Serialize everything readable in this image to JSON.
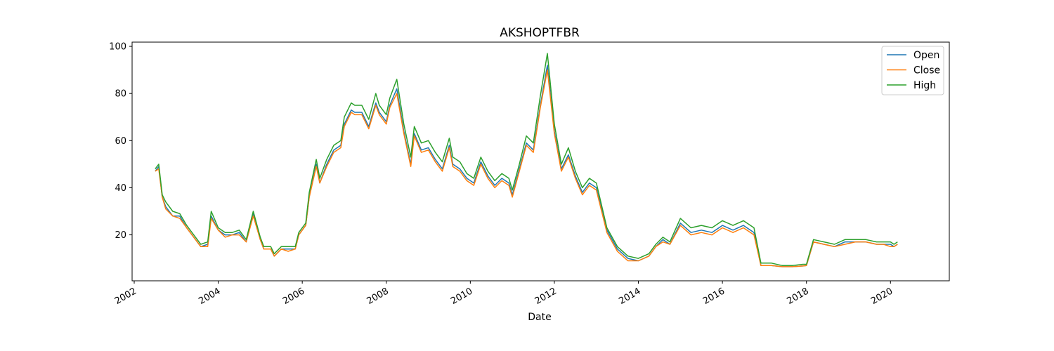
{
  "chart_data": {
    "type": "line",
    "title": "AKSHOPTFBR",
    "xlabel": "Date",
    "ylabel": "",
    "x_tick_labels": [
      "2002",
      "2004",
      "2006",
      "2008",
      "2010",
      "2012",
      "2014",
      "2016",
      "2018",
      "2020"
    ],
    "y_tick_labels": [
      "20",
      "40",
      "60",
      "80",
      "100"
    ],
    "xlim": [
      2001.95,
      2021.4
    ],
    "ylim": [
      0.5,
      101.8
    ],
    "legend_position": "top-right",
    "grid": false,
    "x": [
      "2002-07",
      "2002-08",
      "2002-09",
      "2002-10",
      "2002-12",
      "2003-02",
      "2003-04",
      "2003-06",
      "2003-08",
      "2003-10",
      "2003-11",
      "2004-01",
      "2004-03",
      "2004-05",
      "2004-07",
      "2004-09",
      "2004-11",
      "2005-01",
      "2005-02",
      "2005-04",
      "2005-05",
      "2005-07",
      "2005-09",
      "2005-11",
      "2005-12",
      "2006-02",
      "2006-03",
      "2006-05",
      "2006-06",
      "2006-08",
      "2006-10",
      "2006-12",
      "2007-01",
      "2007-03",
      "2007-04",
      "2007-06",
      "2007-08",
      "2007-10",
      "2007-11",
      "2008-01",
      "2008-02",
      "2008-04",
      "2008-06",
      "2008-08",
      "2008-09",
      "2008-11",
      "2009-01",
      "2009-03",
      "2009-05",
      "2009-07",
      "2009-08",
      "2009-10",
      "2009-12",
      "2010-02",
      "2010-04",
      "2010-06",
      "2010-08",
      "2010-10",
      "2010-12",
      "2011-01",
      "2011-03",
      "2011-05",
      "2011-07",
      "2011-09",
      "2011-11",
      "2012-01",
      "2012-03",
      "2012-05",
      "2012-07",
      "2012-09",
      "2012-11",
      "2013-01",
      "2013-04",
      "2013-07",
      "2013-10",
      "2014-01",
      "2014-04",
      "2014-06",
      "2014-08",
      "2014-10",
      "2015-01",
      "2015-04",
      "2015-07",
      "2015-10",
      "2016-01",
      "2016-04",
      "2016-07",
      "2016-10",
      "2016-12",
      "2017-03",
      "2017-06",
      "2017-09",
      "2017-12",
      "2018-01",
      "2018-03",
      "2018-06",
      "2018-09",
      "2018-12",
      "2019-03",
      "2019-06",
      "2019-09",
      "2019-11",
      "2020-01",
      "2020-02",
      "2020-03"
    ],
    "series": [
      {
        "name": "Open",
        "color": "#1f77b4",
        "values": [
          47,
          49,
          36,
          32,
          28,
          28,
          23,
          19,
          15,
          16,
          28,
          22,
          20,
          20,
          21,
          17,
          29,
          18,
          14,
          14,
          11,
          14,
          14,
          14,
          20,
          24,
          36,
          50,
          42,
          50,
          56,
          58,
          67,
          73,
          72,
          72,
          66,
          76,
          72,
          68,
          75,
          82,
          64,
          50,
          63,
          56,
          57,
          52,
          48,
          58,
          50,
          48,
          44,
          42,
          51,
          45,
          41,
          44,
          42,
          37,
          48,
          59,
          56,
          75,
          92,
          64,
          48,
          54,
          45,
          38,
          42,
          40,
          22,
          14,
          10,
          9,
          11,
          15,
          18,
          16,
          25,
          21,
          22,
          21,
          24,
          22,
          24,
          21,
          7,
          7,
          6.5,
          6.5,
          6.8,
          7,
          17,
          16,
          15,
          17,
          17,
          17,
          16,
          16,
          16,
          15,
          16
        ]
      },
      {
        "name": "Close",
        "color": "#ff7f0e",
        "values": [
          47,
          48,
          36,
          31,
          28,
          27,
          23,
          19,
          15,
          15,
          27,
          22,
          19,
          20,
          20,
          17,
          28,
          18,
          14,
          14,
          11,
          14,
          13,
          14,
          20,
          24,
          36,
          49,
          42,
          49,
          55,
          57,
          66,
          72,
          71,
          71,
          65,
          75,
          71,
          67,
          74,
          80,
          63,
          49,
          62,
          55,
          56,
          51,
          47,
          57,
          49,
          47,
          43,
          41,
          50,
          44,
          40,
          43,
          41,
          36,
          47,
          58,
          55,
          74,
          90,
          63,
          47,
          53,
          44,
          37,
          41,
          39,
          21,
          13,
          9,
          9,
          11,
          15,
          17,
          16,
          24,
          20,
          21,
          20,
          23,
          21,
          23,
          20,
          7,
          7,
          6.5,
          6.5,
          6.8,
          7,
          17,
          16,
          15,
          16,
          17,
          17,
          16,
          16,
          15,
          15,
          16
        ]
      },
      {
        "name": "High",
        "color": "#2ca02c",
        "values": [
          48,
          50,
          37,
          34,
          30,
          29,
          24,
          20,
          16,
          17,
          30,
          23,
          21,
          21,
          22,
          18,
          30,
          19,
          15,
          15,
          12,
          15,
          15,
          15,
          21,
          25,
          38,
          52,
          44,
          52,
          58,
          60,
          70,
          76,
          75,
          75,
          69,
          80,
          75,
          71,
          78,
          86,
          67,
          53,
          66,
          59,
          60,
          55,
          51,
          61,
          53,
          51,
          46,
          44,
          53,
          47,
          43,
          46,
          44,
          39,
          50,
          62,
          59,
          79,
          97,
          67,
          50,
          57,
          47,
          40,
          44,
          42,
          23,
          15,
          11,
          10,
          12,
          16,
          19,
          17,
          27,
          23,
          24,
          23,
          26,
          24,
          26,
          23,
          8,
          8,
          7,
          7,
          7.5,
          7.5,
          18,
          17,
          16,
          18,
          18,
          18,
          17,
          17,
          17,
          16,
          17
        ]
      }
    ]
  }
}
